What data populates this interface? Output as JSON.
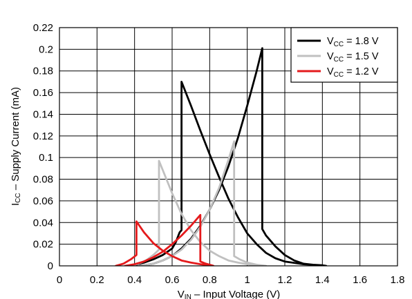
{
  "chart_data": {
    "type": "line",
    "title": "",
    "xlabel": "V_IN – Input Voltage (V)",
    "xlabel_parts": {
      "v": "V",
      "sub": "IN",
      "rest": " – Input Voltage (V)"
    },
    "ylabel": "I_CC – Supply Current (mA)",
    "ylabel_parts": {
      "i": "I",
      "sub": "CC",
      "rest": " – Supply Current (mA)"
    },
    "xlim": [
      0,
      1.8
    ],
    "ylim": [
      0,
      0.22
    ],
    "xticks": [
      0,
      0.2,
      0.4,
      0.6,
      0.8,
      1,
      1.2,
      1.4,
      1.6,
      1.8
    ],
    "xtick_labels": [
      "0",
      "0.2",
      "0.4",
      "0.6",
      "0.8",
      "1",
      "1.2",
      "1.4",
      "1.6",
      "1.8"
    ],
    "yticks": [
      0,
      0.02,
      0.04,
      0.06,
      0.08,
      0.1,
      0.12,
      0.14,
      0.16,
      0.18,
      0.2,
      0.22
    ],
    "ytick_labels": [
      "0",
      "0.02",
      "0.04",
      "0.06",
      "0.08",
      "0.1",
      "0.12",
      "0.14",
      "0.16",
      "0.18",
      "0.2",
      "0.22"
    ],
    "grid": true,
    "legend_position": "top-right",
    "series": [
      {
        "name": "V_CC = 1.8 V",
        "label_parts": {
          "v": "V",
          "sub": "CC",
          "rest": " = 1.8 V"
        },
        "color": "#000000",
        "points": [
          [
            0.35,
            0
          ],
          [
            0.4,
            0.001
          ],
          [
            0.45,
            0.003
          ],
          [
            0.5,
            0.006
          ],
          [
            0.55,
            0.01
          ],
          [
            0.6,
            0.016
          ],
          [
            0.62,
            0.022
          ],
          [
            0.64,
            0.031
          ],
          [
            0.65,
            0.033
          ],
          [
            0.65,
            0.17
          ],
          [
            0.7,
            0.148
          ],
          [
            0.75,
            0.125
          ],
          [
            0.8,
            0.103
          ],
          [
            0.85,
            0.082
          ],
          [
            0.9,
            0.062
          ],
          [
            0.95,
            0.045
          ],
          [
            1.0,
            0.03
          ],
          [
            1.05,
            0.02
          ],
          [
            1.1,
            0.012
          ],
          [
            1.15,
            0.007
          ],
          [
            1.2,
            0.004
          ],
          [
            1.3,
            0.0015
          ],
          [
            1.4,
            0.0005
          ],
          [
            1.42,
            0
          ],
          [
            1.4,
            0.0005
          ],
          [
            1.35,
            0.001
          ],
          [
            1.3,
            0.002
          ],
          [
            1.25,
            0.005
          ],
          [
            1.2,
            0.01
          ],
          [
            1.15,
            0.018
          ],
          [
            1.1,
            0.028
          ],
          [
            1.08,
            0.034
          ],
          [
            1.08,
            0.201
          ],
          [
            1.05,
            0.18
          ],
          [
            1.0,
            0.148
          ],
          [
            0.95,
            0.118
          ],
          [
            0.9,
            0.092
          ],
          [
            0.85,
            0.07
          ],
          [
            0.8,
            0.052
          ],
          [
            0.75,
            0.037
          ],
          [
            0.7,
            0.025
          ],
          [
            0.65,
            0.016
          ],
          [
            0.6,
            0.009
          ],
          [
            0.55,
            0.005
          ],
          [
            0.5,
            0.002
          ],
          [
            0.45,
            0.0005
          ],
          [
            0.4,
            0
          ]
        ]
      },
      {
        "name": "V_CC = 1.5 V",
        "label_parts": {
          "v": "V",
          "sub": "CC",
          "rest": " = 1.5 V"
        },
        "color": "#c0c0c0",
        "points": [
          [
            0.38,
            0
          ],
          [
            0.42,
            0.002
          ],
          [
            0.46,
            0.005
          ],
          [
            0.5,
            0.01
          ],
          [
            0.53,
            0.015
          ],
          [
            0.53,
            0.097
          ],
          [
            0.57,
            0.08
          ],
          [
            0.6,
            0.067
          ],
          [
            0.65,
            0.048
          ],
          [
            0.7,
            0.033
          ],
          [
            0.75,
            0.022
          ],
          [
            0.8,
            0.014
          ],
          [
            0.85,
            0.009
          ],
          [
            0.9,
            0.005
          ],
          [
            0.95,
            0.003
          ],
          [
            1.0,
            0.0015
          ],
          [
            1.05,
            0.0005
          ],
          [
            1.1,
            0
          ],
          [
            1.05,
            0.001
          ],
          [
            1.0,
            0.003
          ],
          [
            0.96,
            0.006
          ],
          [
            0.93,
            0.009
          ],
          [
            0.93,
            0.115
          ],
          [
            0.9,
            0.098
          ],
          [
            0.85,
            0.072
          ],
          [
            0.8,
            0.052
          ],
          [
            0.75,
            0.036
          ],
          [
            0.7,
            0.024
          ],
          [
            0.65,
            0.015
          ],
          [
            0.6,
            0.009
          ],
          [
            0.55,
            0.005
          ],
          [
            0.5,
            0.002
          ],
          [
            0.45,
            0.0005
          ],
          [
            0.42,
            0
          ]
        ]
      },
      {
        "name": "V_CC = 1.2 V",
        "label_parts": {
          "v": "V",
          "sub": "CC",
          "rest": " = 1.2 V"
        },
        "color": "#e41a1c",
        "points": [
          [
            0.3,
            0
          ],
          [
            0.34,
            0.002
          ],
          [
            0.38,
            0.006
          ],
          [
            0.41,
            0.01
          ],
          [
            0.41,
            0.041
          ],
          [
            0.45,
            0.031
          ],
          [
            0.5,
            0.021
          ],
          [
            0.55,
            0.014
          ],
          [
            0.6,
            0.009
          ],
          [
            0.65,
            0.005
          ],
          [
            0.7,
            0.003
          ],
          [
            0.75,
            0.0015
          ],
          [
            0.8,
            0.0005
          ],
          [
            0.82,
            0
          ],
          [
            0.8,
            0.001
          ],
          [
            0.78,
            0.002
          ],
          [
            0.75,
            0.004
          ],
          [
            0.75,
            0.047
          ],
          [
            0.7,
            0.037
          ],
          [
            0.65,
            0.028
          ],
          [
            0.6,
            0.02
          ],
          [
            0.55,
            0.013
          ],
          [
            0.5,
            0.008
          ],
          [
            0.45,
            0.004
          ],
          [
            0.4,
            0.0015
          ],
          [
            0.35,
            0
          ]
        ]
      }
    ]
  }
}
